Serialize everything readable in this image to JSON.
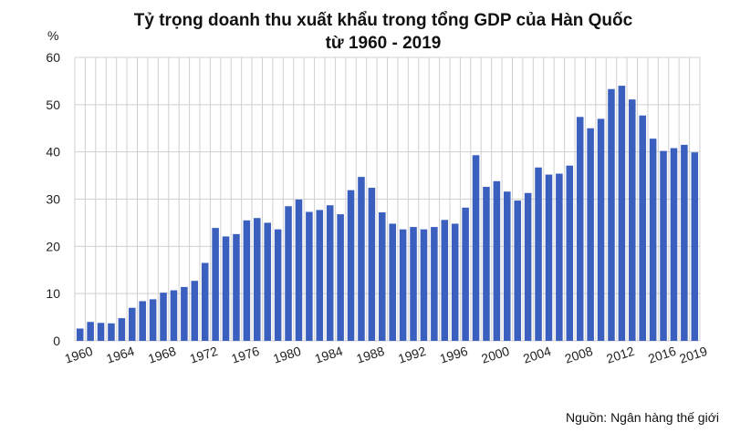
{
  "chart_data": {
    "type": "bar",
    "title_line1": "Tỷ trọng doanh thu xuất khẩu trong tổng GDP của Hàn Quốc",
    "title_line2": "từ 1960 - 2019",
    "ylabel": "%",
    "source": "Nguồn: Ngân hàng thế giới",
    "ylim": [
      0,
      60
    ],
    "yticks": [
      0,
      10,
      20,
      30,
      40,
      50,
      60
    ],
    "grid": true,
    "color": "#3a5fbf",
    "x_tick_labels": [
      "1960",
      "1964",
      "1968",
      "1972",
      "1976",
      "1980",
      "1984",
      "1988",
      "1992",
      "1996",
      "2000",
      "2004",
      "2008",
      "2012",
      "2016",
      "2019"
    ],
    "categories": [
      1960,
      1961,
      1962,
      1963,
      1964,
      1965,
      1966,
      1967,
      1968,
      1969,
      1970,
      1971,
      1972,
      1973,
      1974,
      1975,
      1976,
      1977,
      1978,
      1979,
      1980,
      1981,
      1982,
      1983,
      1984,
      1985,
      1986,
      1987,
      1988,
      1989,
      1990,
      1991,
      1992,
      1993,
      1994,
      1995,
      1996,
      1997,
      1998,
      1999,
      2000,
      2001,
      2002,
      2003,
      2004,
      2005,
      2006,
      2007,
      2008,
      2009,
      2010,
      2011,
      2012,
      2013,
      2014,
      2015,
      2016,
      2017,
      2018,
      2019
    ],
    "values": [
      2.6,
      4.0,
      3.8,
      3.7,
      4.8,
      7.0,
      8.4,
      8.8,
      10.2,
      10.7,
      11.4,
      12.7,
      16.5,
      23.9,
      22.1,
      22.6,
      25.5,
      26.0,
      25.0,
      23.6,
      28.5,
      29.9,
      27.3,
      27.7,
      28.7,
      26.8,
      31.9,
      34.7,
      32.4,
      27.2,
      24.8,
      23.6,
      24.1,
      23.6,
      24.1,
      25.6,
      24.8,
      28.2,
      39.3,
      32.6,
      33.8,
      31.6,
      29.7,
      31.3,
      36.7,
      35.2,
      35.4,
      37.1,
      47.4,
      45.0,
      47.0,
      53.3,
      54.0,
      51.1,
      47.7,
      42.8,
      40.2,
      40.8,
      41.5,
      39.9
    ]
  }
}
